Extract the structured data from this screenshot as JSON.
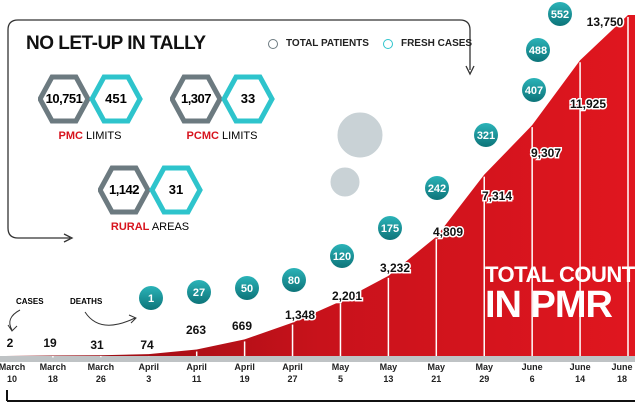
{
  "title": "NO LET-UP IN TALLY",
  "legend": {
    "total": "TOTAL PATIENTS",
    "fresh": "FRESH CASES"
  },
  "regions": [
    {
      "highlight": "PMC",
      "rest": " LIMITS",
      "total": "10,751",
      "fresh": "451"
    },
    {
      "highlight": "PCMC",
      "rest": " LIMITS",
      "total": "1,307",
      "fresh": "33"
    },
    {
      "highlight": "RURAL",
      "rest": " AREAS",
      "total": "1,142",
      "fresh": "31"
    }
  ],
  "annotations": {
    "cases": "CASES",
    "deaths": "DEATHS",
    "big1": "TOTAL COUNT",
    "big2": "IN PMR"
  },
  "colors": {
    "red": "#d7141e",
    "teal": "#1a9aa0",
    "gray": "#6c7a80",
    "cyan": "#2ec4cc"
  },
  "chart_data": {
    "type": "area",
    "title": "TOTAL COUNT IN PMR",
    "categories": [
      [
        "March",
        "10"
      ],
      [
        "March",
        "18"
      ],
      [
        "March",
        "26"
      ],
      [
        "April",
        "3"
      ],
      [
        "April",
        "11"
      ],
      [
        "April",
        "19"
      ],
      [
        "April",
        "27"
      ],
      [
        "May",
        "5"
      ],
      [
        "May",
        "13"
      ],
      [
        "May",
        "21"
      ],
      [
        "May",
        "29"
      ],
      [
        "June",
        "6"
      ],
      [
        "June",
        "14"
      ],
      [
        "June",
        "18"
      ]
    ],
    "series": [
      {
        "name": "CASES",
        "values": [
          2,
          19,
          31,
          74,
          263,
          669,
          1348,
          2201,
          3232,
          4809,
          7314,
          9307,
          11925,
          13750
        ],
        "labels": [
          "2",
          "19",
          "31",
          "74",
          "263",
          "669",
          "1,348",
          "2,201",
          "3,232",
          "4,809",
          "7,314",
          "9,307",
          "11,925",
          "13,750"
        ]
      },
      {
        "name": "DEATHS",
        "values": [
          null,
          null,
          null,
          1,
          27,
          50,
          80,
          120,
          175,
          242,
          321,
          407,
          488,
          552
        ]
      }
    ],
    "ylim": [
      0,
      13750
    ]
  }
}
